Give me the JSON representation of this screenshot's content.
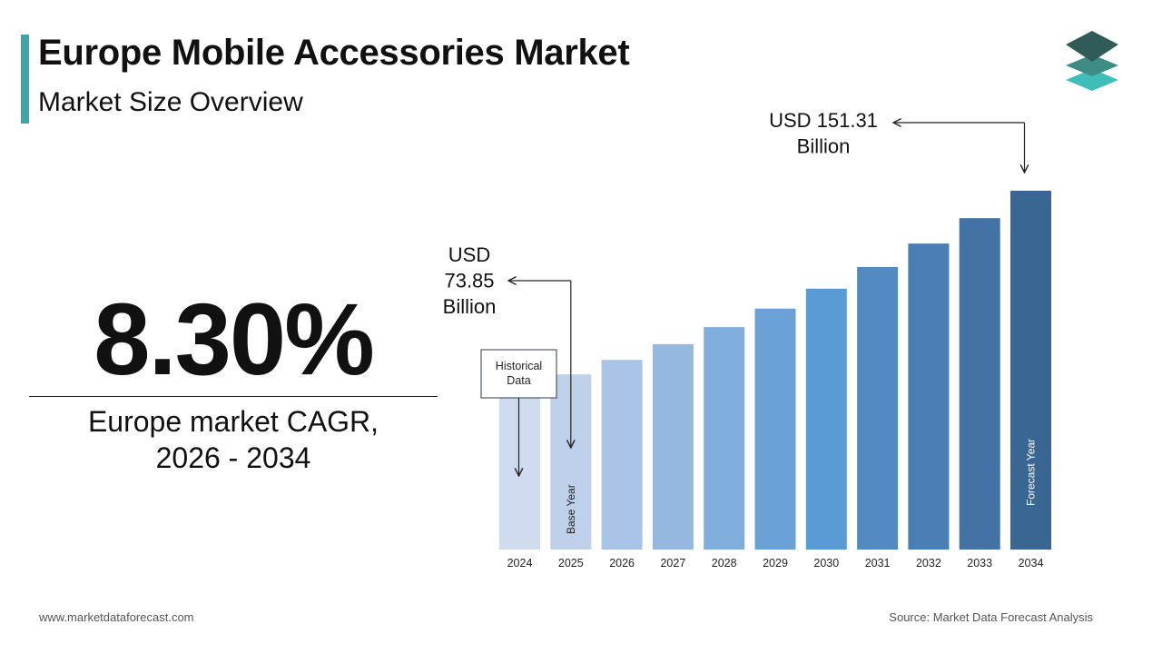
{
  "header": {
    "title": "Europe Mobile Accessories Market",
    "subtitle": "Market Size Overview"
  },
  "brand": {
    "accent_color": "#3aa6a8",
    "logo_icon": "stacked-layers-icon"
  },
  "kpi": {
    "cagr_value": "8.30%",
    "cagr_label_line1": "Europe market CAGR,",
    "cagr_label_line2": "2026 - 2034"
  },
  "chart_data": {
    "type": "bar",
    "title": "",
    "xlabel": "",
    "ylabel": "",
    "categories": [
      "2024",
      "2025",
      "2026",
      "2027",
      "2028",
      "2029",
      "2030",
      "2031",
      "2032",
      "2033",
      "2034"
    ],
    "values": [
      68.19,
      73.85,
      79.98,
      86.62,
      93.81,
      101.59,
      110.02,
      119.15,
      129.04,
      139.75,
      151.31
    ],
    "ylim": [
      0,
      151.31
    ],
    "grid": false,
    "legend": "none",
    "bar_colors": [
      "#cfdcef",
      "#bfd1ea",
      "#a9c4e6",
      "#94b8e0",
      "#7faddc",
      "#6aa2d8",
      "#5b9bd5",
      "#538ac2",
      "#4a7eb4",
      "#4273a4",
      "#3a6693"
    ],
    "annotations": {
      "base_value": [
        "USD",
        "73.85",
        "Billion"
      ],
      "final_value": [
        "USD 151.31",
        "Billion"
      ],
      "historical_box": [
        "Historical",
        "Data"
      ],
      "base_year_label": "Base Year",
      "forecast_year_label": "Forecast Year"
    }
  },
  "footer": {
    "website": "www.marketdataforecast.com",
    "source": "Source: Market Data Forecast Analysis"
  }
}
